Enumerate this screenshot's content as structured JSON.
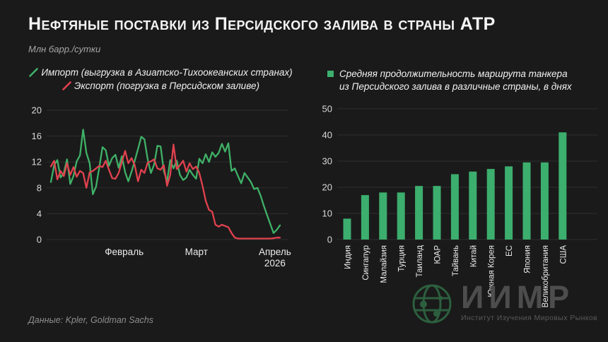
{
  "header": {
    "title": "Нефтяные поставки из Персидского залива в страны АТР",
    "units_label": "Млн барр./сутки"
  },
  "line_chart_legend": [
    {
      "label": "Импорт (выгрузка в Азиатско-Тихоокеанских странах)",
      "color": "#3fb167"
    },
    {
      "label": "Экспорт (погрузка в Персидском заливе)",
      "color": "#e2414e"
    }
  ],
  "bar_chart_legend": {
    "lines": [
      "Средняя продолжительность маршрута танкера",
      "из Персидского залива в различные страны, в днях"
    ],
    "color": "#3cae6e"
  },
  "chart_data": [
    {
      "type": "line",
      "title": "Нефтяные поставки из Персидского залива в страны АТР",
      "ylabel": "Млн барр./сутки",
      "ylim": [
        0,
        20
      ],
      "y_ticks": [
        0,
        4,
        8,
        12,
        16,
        20
      ],
      "grid": true,
      "legend_position": "top",
      "x_ticks": [
        {
          "label": "Февраль",
          "pos": 0.32
        },
        {
          "label": "Март",
          "pos": 0.635
        },
        {
          "label": "Апрель",
          "pos": 0.978,
          "sublabel": "2026"
        }
      ],
      "series": [
        {
          "name": "Импорт (выгрузка в Азиатско-Тихоокеанских странах)",
          "color": "#3fb167",
          "values": [
            8.9,
            11.5,
            12.3,
            9.6,
            10.3,
            12.4,
            8.6,
            9.8,
            12.1,
            13.0,
            17.0,
            13.4,
            11.8,
            7.0,
            8.2,
            11.2,
            14.3,
            13.8,
            11.4,
            12.6,
            13.1,
            11.1,
            12.9,
            10.4,
            9.0,
            10.5,
            12.2,
            14.0,
            15.9,
            15.5,
            12.4,
            10.3,
            11.6,
            14.5,
            14.4,
            10.6,
            9.0,
            12.3,
            11.0,
            12.2,
            10.0,
            9.2,
            9.6,
            10.8,
            10.0,
            9.4,
            12.5,
            11.8,
            13.2,
            12.0,
            13.5,
            12.8,
            13.4,
            14.8,
            13.6,
            14.9,
            10.6,
            11.0,
            9.8,
            8.7,
            10.3,
            9.6,
            8.9,
            7.8,
            8.0,
            6.8,
            5.2,
            3.8,
            2.4,
            1.0,
            1.5,
            2.2
          ]
        },
        {
          "name": "Экспорт (погрузка в Персидском заливе)",
          "color": "#e2414e",
          "values": [
            11.3,
            12.2,
            9.3,
            10.6,
            9.8,
            11.8,
            10.0,
            11.2,
            9.7,
            10.6,
            10.3,
            8.0,
            10.4,
            10.6,
            11.0,
            11.4,
            11.2,
            12.2,
            10.8,
            9.5,
            9.4,
            10.3,
            12.0,
            13.7,
            11.8,
            12.6,
            11.5,
            9.0,
            10.8,
            10.3,
            11.9,
            12.1,
            12.4,
            11.0,
            10.8,
            11.5,
            8.3,
            10.0,
            14.7,
            10.9,
            11.5,
            12.2,
            10.5,
            11.8,
            10.9,
            11.3,
            10.3,
            8.3,
            6.0,
            4.6,
            4.3,
            2.3,
            2.0,
            2.3,
            2.1,
            1.9,
            1.0,
            0.3,
            0.15,
            0.15,
            0.15,
            0.15,
            0.15,
            0.15,
            0.15,
            0.15,
            0.15,
            0.15,
            0.15,
            0.2,
            0.3,
            0.3
          ]
        }
      ]
    },
    {
      "type": "bar",
      "title": "Средняя продолжительность маршрута танкера из Персидского залива в различные страны, в днях",
      "categories": [
        "Индия",
        "Сингапур",
        "Малайзия",
        "Турция",
        "Таиланд",
        "ЮАР",
        "Тайвань",
        "Китай",
        "Южная Корея",
        "ЕС",
        "Япония",
        "Великобритания",
        "США"
      ],
      "values": [
        8,
        17,
        18,
        18,
        20.5,
        20.5,
        25,
        26,
        27,
        28,
        29.5,
        29.5,
        41
      ],
      "ylim": [
        0,
        50
      ],
      "y_ticks": [
        0,
        10,
        20,
        30,
        40,
        50
      ],
      "grid": true,
      "bar_color": "#3cae6e"
    }
  ],
  "footer": {
    "source": "Данные: Kpler, Goldman Sachs"
  },
  "watermark": {
    "name": "ИИМР",
    "subtitle": "Институт Изучения Мировых Рынков"
  },
  "colors": {
    "background": "#1a1a1a",
    "grid": "rgba(255,255,255,0.09)",
    "tick_text": "#d9d9d9",
    "import_green": "#3fb167",
    "export_red": "#e2414e",
    "bar_green": "#3cae6e"
  }
}
